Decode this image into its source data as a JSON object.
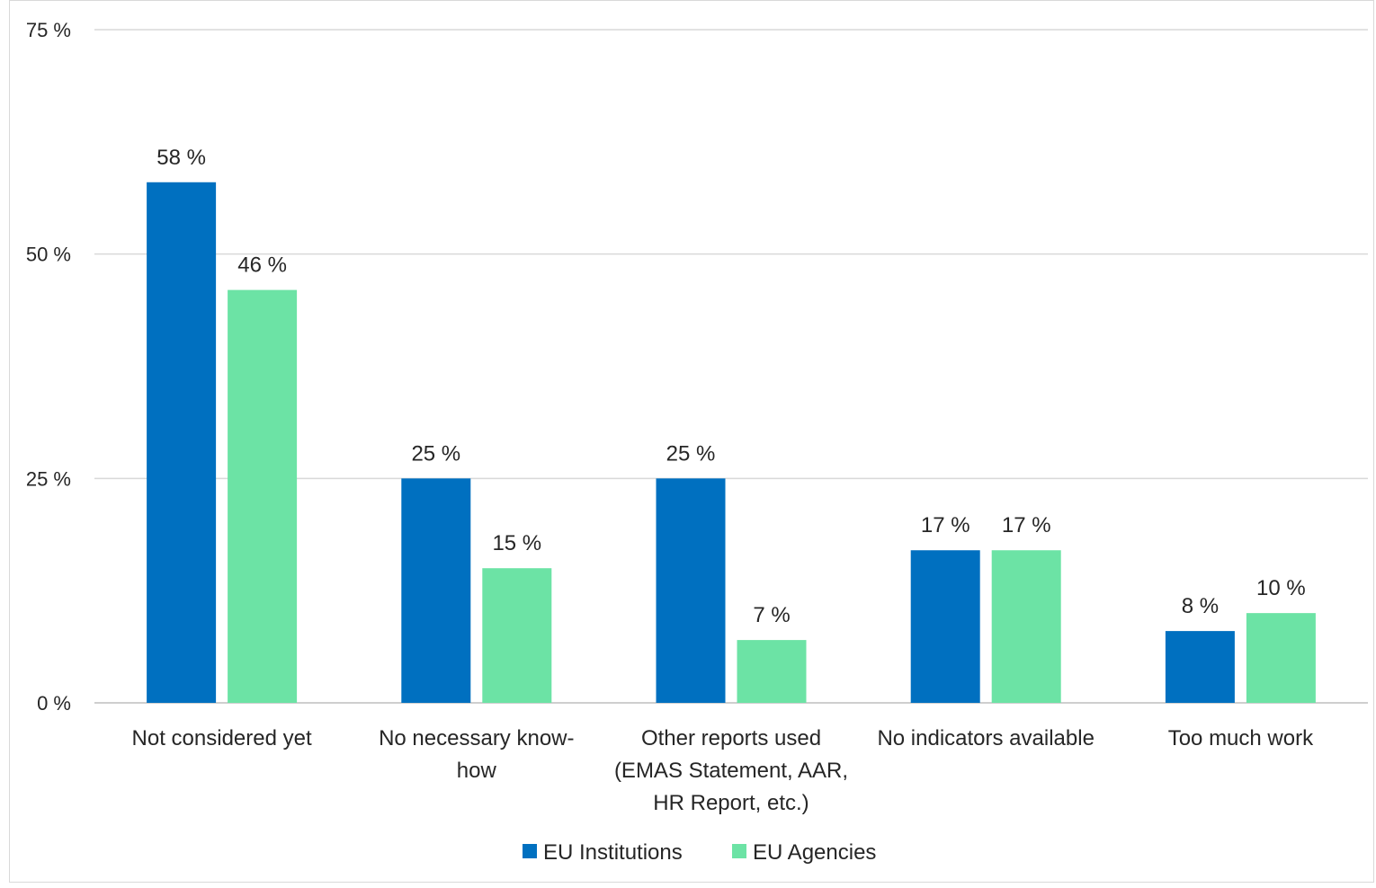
{
  "chart_data": {
    "type": "bar",
    "title": "",
    "xlabel": "",
    "ylabel": "",
    "ylim": [
      0,
      75
    ],
    "yticks": [
      0,
      25,
      50,
      75
    ],
    "ytick_labels": [
      "0 %",
      "25 %",
      "50 %",
      "75 %"
    ],
    "grid": true,
    "legend_position": "bottom",
    "categories": [
      [
        "Not considered yet"
      ],
      [
        "No necessary know-",
        "how"
      ],
      [
        "Other reports used",
        "(EMAS Statement, AAR,",
        "HR Report, etc.)"
      ],
      [
        "No indicators available"
      ],
      [
        "Too much work"
      ]
    ],
    "series": [
      {
        "name": "EU Institutions",
        "color": "#0070c0",
        "values": [
          58,
          25,
          25,
          17,
          8
        ],
        "labels": [
          "58 %",
          "25 %",
          "25 %",
          "17 %",
          "8 %"
        ]
      },
      {
        "name": "EU Agencies",
        "color": "#6ce3a5",
        "values": [
          46,
          15,
          7,
          17,
          10
        ],
        "labels": [
          "46 %",
          "15 %",
          "7 %",
          "17 %",
          "10 %"
        ]
      }
    ]
  }
}
